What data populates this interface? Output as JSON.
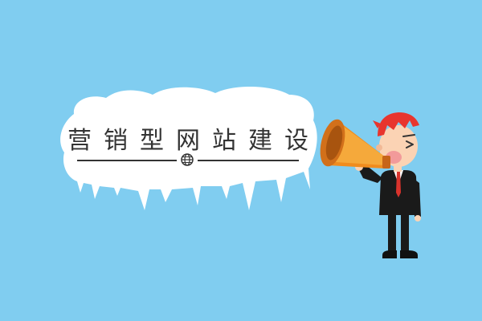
{
  "banner": {
    "headline_chars": [
      "营",
      "销",
      "型",
      "网",
      "站",
      "建",
      "设"
    ]
  },
  "icons": {
    "divider_emblem": "globe-icon",
    "speaker": "megaphone-man-illustration"
  },
  "colors": {
    "background": "#80cdf0",
    "cloud": "#ffffff",
    "text": "#333333",
    "megaphone": "#f08c1e",
    "hair": "#e8352e",
    "skin": "#fbd3b4",
    "suit": "#1a1a1a",
    "tie": "#d9332c"
  }
}
